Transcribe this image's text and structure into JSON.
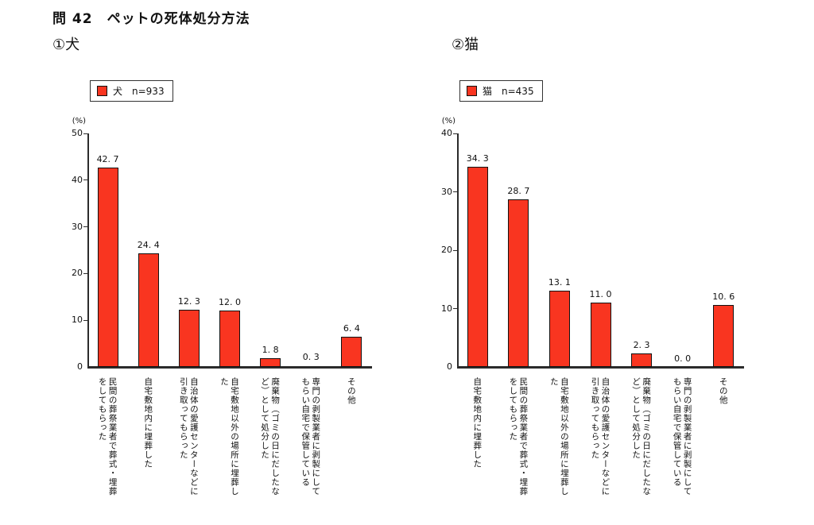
{
  "page_title": "問 42　ペットの死体処分方法",
  "chart_data": [
    {
      "type": "bar",
      "section_label": "①犬",
      "legend": {
        "series_label": "犬",
        "n_label": "n=933"
      },
      "unit_label": "(%)",
      "ylabel": "%",
      "ylim": [
        0,
        50
      ],
      "ytick_step": 10,
      "grid": false,
      "bar_color": "#f93520",
      "categories": [
        "民間の葬祭業者で葬式・埋葬をしてもらった",
        "自宅敷地内に埋葬した",
        "自治体の愛護センターなどに引き取ってもらった",
        "自宅敷地以外の場所に埋葬した",
        "廃棄物（ゴミの日にだしたなど）として処分した",
        "専門の剥製業者に剥製にしてもらい自宅で保管している",
        "その他"
      ],
      "category_lines": [
        [
          "民間の葬祭業者で葬式・埋葬",
          "をしてもらった"
        ],
        [
          "自宅敷地内に埋葬した"
        ],
        [
          "自治体の愛護センターなどに",
          "引き取ってもらった"
        ],
        [
          "自宅敷地以外の場所に埋葬し",
          "た"
        ],
        [
          "廃棄物（ゴミの日にだしたな",
          "ど）として処分した"
        ],
        [
          "専門の剥製業者に剥製にして",
          "もらい自宅で保管している"
        ],
        [
          "その他"
        ]
      ],
      "values": [
        42.7,
        24.4,
        12.3,
        12.0,
        1.8,
        0.3,
        6.4
      ]
    },
    {
      "type": "bar",
      "section_label": "②猫",
      "legend": {
        "series_label": "猫",
        "n_label": "n=435"
      },
      "unit_label": "(%)",
      "ylabel": "%",
      "ylim": [
        0,
        40
      ],
      "ytick_step": 10,
      "grid": false,
      "bar_color": "#f93520",
      "categories": [
        "自宅敷地内に埋葬した",
        "民間の葬祭業者で葬式・埋葬をしてもらった",
        "自宅敷地以外の場所に埋葬した",
        "自治体の愛護センターなどに引き取ってもらった",
        "廃棄物（ゴミの日にだしたなど）として処分した",
        "専門の剥製業者に剥製にしてもらい自宅で保管している",
        "その他"
      ],
      "category_lines": [
        [
          "自宅敷地内に埋葬した"
        ],
        [
          "民間の葬祭業者で葬式・埋葬",
          "をしてもらった"
        ],
        [
          "自宅敷地以外の場所に埋葬し",
          "た"
        ],
        [
          "自治体の愛護センターなどに",
          "引き取ってもらった"
        ],
        [
          "廃棄物（ゴミの日にだしたな",
          "ど）として処分した"
        ],
        [
          "専門の剥製業者に剥製にして",
          "もらい自宅で保管している"
        ],
        [
          "その他"
        ]
      ],
      "values": [
        34.3,
        28.7,
        13.1,
        11.0,
        2.3,
        0.0,
        10.6
      ]
    }
  ]
}
